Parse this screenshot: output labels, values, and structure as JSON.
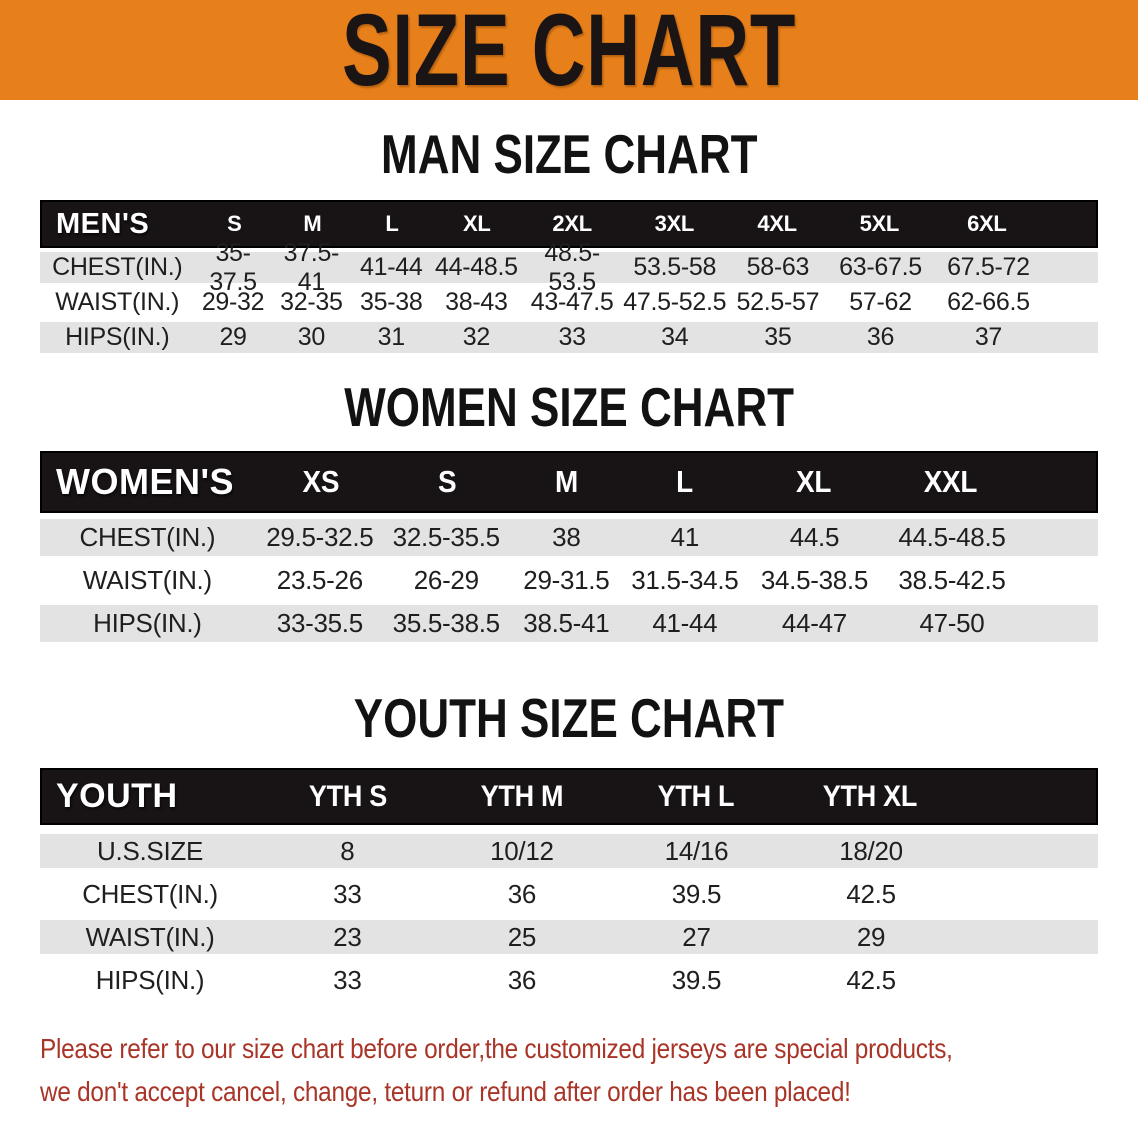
{
  "banner": {
    "title": "SIZE CHART"
  },
  "colors": {
    "banner_bg": "#E7801A",
    "banner_text": "#1A1514",
    "header_bar": "#181314",
    "row_gray": "#E4E3E3",
    "row_white": "#FFFFFF",
    "body_text": "#1F1F1F",
    "disclaimer_red": "#A93528"
  },
  "sections": [
    {
      "heading": "MAN SIZE CHART",
      "group_label": "MEN'S",
      "sizes": [
        "S",
        "M",
        "L",
        "XL",
        "2XL",
        "3XL",
        "4XL",
        "5XL",
        "6XL"
      ],
      "rows": [
        {
          "label": "CHEST(IN.)",
          "values": [
            "35-37.5",
            "37.5-41",
            "41-44",
            "44-48.5",
            "48.5-53.5",
            "53.5-58",
            "58-63",
            "63-67.5",
            "67.5-72"
          ]
        },
        {
          "label": "WAIST(IN.)",
          "values": [
            "29-32",
            "32-35",
            "35-38",
            "38-43",
            "43-47.5",
            "47.5-52.5",
            "52.5-57",
            "57-62",
            "62-66.5"
          ]
        },
        {
          "label": "HIPS(IN.)",
          "values": [
            "29",
            "30",
            "31",
            "32",
            "33",
            "34",
            "35",
            "36",
            "37"
          ]
        }
      ]
    },
    {
      "heading": "WOMEN SIZE CHART",
      "group_label": "WOMEN'S",
      "sizes": [
        "XS",
        "S",
        "M",
        "L",
        "XL",
        "XXL"
      ],
      "rows": [
        {
          "label": "CHEST(IN.)",
          "values": [
            "29.5-32.5",
            "32.5-35.5",
            "38",
            "41",
            "44.5",
            "44.5-48.5"
          ]
        },
        {
          "label": "WAIST(IN.)",
          "values": [
            "23.5-26",
            "26-29",
            "29-31.5",
            "31.5-34.5",
            "34.5-38.5",
            "38.5-42.5"
          ]
        },
        {
          "label": "HIPS(IN.)",
          "values": [
            "33-35.5",
            "35.5-38.5",
            "38.5-41",
            "41-44",
            "44-47",
            "47-50"
          ]
        }
      ]
    },
    {
      "heading": "YOUTH SIZE CHART",
      "group_label": "YOUTH",
      "sizes": [
        "YTH S",
        "YTH M",
        "YTH L",
        "YTH XL"
      ],
      "rows": [
        {
          "label": "U.S.SIZE",
          "values": [
            "8",
            "10/12",
            "14/16",
            "18/20"
          ]
        },
        {
          "label": "CHEST(IN.)",
          "values": [
            "33",
            "36",
            "39.5",
            "42.5"
          ]
        },
        {
          "label": "WAIST(IN.)",
          "values": [
            "23",
            "25",
            "27",
            "29"
          ]
        },
        {
          "label": "HIPS(IN.)",
          "values": [
            "33",
            "36",
            "39.5",
            "42.5"
          ]
        }
      ]
    }
  ],
  "disclaimer": {
    "lines": [
      "Please refer to our size chart before order,the customized jerseys are special products,",
      "we don't accept cancel, change, teturn or refund after order has been placed!"
    ]
  }
}
